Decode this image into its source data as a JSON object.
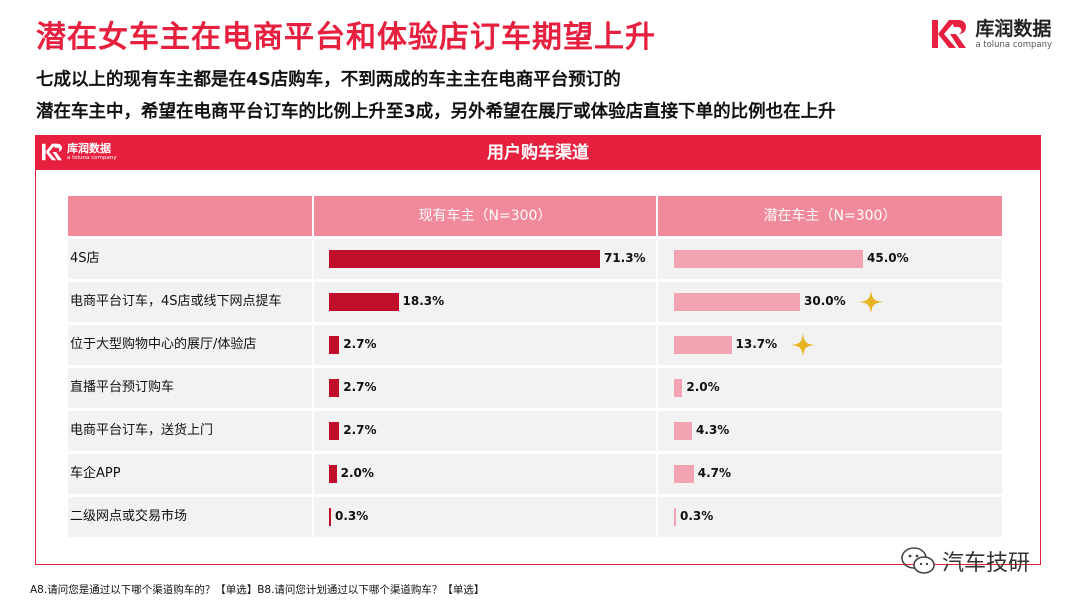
{
  "header": {
    "title": "潜在女车主在电商平台和体验店订车期望上升",
    "subtitle_line1": "七成以上的现有车主都是在4S店购车，不到两成的车主主在电商平台预订的",
    "subtitle_line2": "潜在车主中，希望在电商平台订车的比例上升至3成，另外希望在展厅或体验店直接下单的比例也在上升"
  },
  "brand": {
    "name": "库润数据",
    "tagline": "a toluna company",
    "color": "#e8203f"
  },
  "panel": {
    "title": "用户购车渠道"
  },
  "chart_data": {
    "type": "bar",
    "title": "用户购车渠道",
    "categories": [
      "4S店",
      "电商平台订车，4S店或线下网点提车",
      "位于大型购物中心的展厅/体验店",
      "直播平台预订购车",
      "电商平台订车，送货上门",
      "车企APP",
      "二级网点或交易市场"
    ],
    "series": [
      {
        "name": "现有车主（N=300）",
        "color": "#c00f2a",
        "values": [
          71.3,
          18.3,
          2.7,
          2.7,
          2.7,
          2.0,
          0.3
        ],
        "labels": [
          "71.3%",
          "18.3%",
          "2.7%",
          "2.7%",
          "2.7%",
          "2.0%",
          "0.3%"
        ]
      },
      {
        "name": "潜在车主（N=300）",
        "color": "#f2a4b2",
        "values": [
          45.0,
          30.0,
          13.7,
          2.0,
          4.3,
          4.7,
          0.3
        ],
        "labels": [
          "45.0%",
          "30.0%",
          "13.7%",
          "2.0%",
          "4.3%",
          "4.7%",
          "0.3%"
        ]
      }
    ],
    "highlight": {
      "series": 1,
      "categories": [
        1,
        2
      ],
      "icon": "star-icon",
      "color": "#e6b422"
    },
    "legend": "column-headers",
    "grid": false
  },
  "watermark": {
    "text": "汽车技研",
    "icon": "wechat-icon"
  },
  "footnote": "A8.请问您是通过以下哪个渠道购车的？【单选】B8.请问您计划通过以下哪个渠道购车？【单选】"
}
